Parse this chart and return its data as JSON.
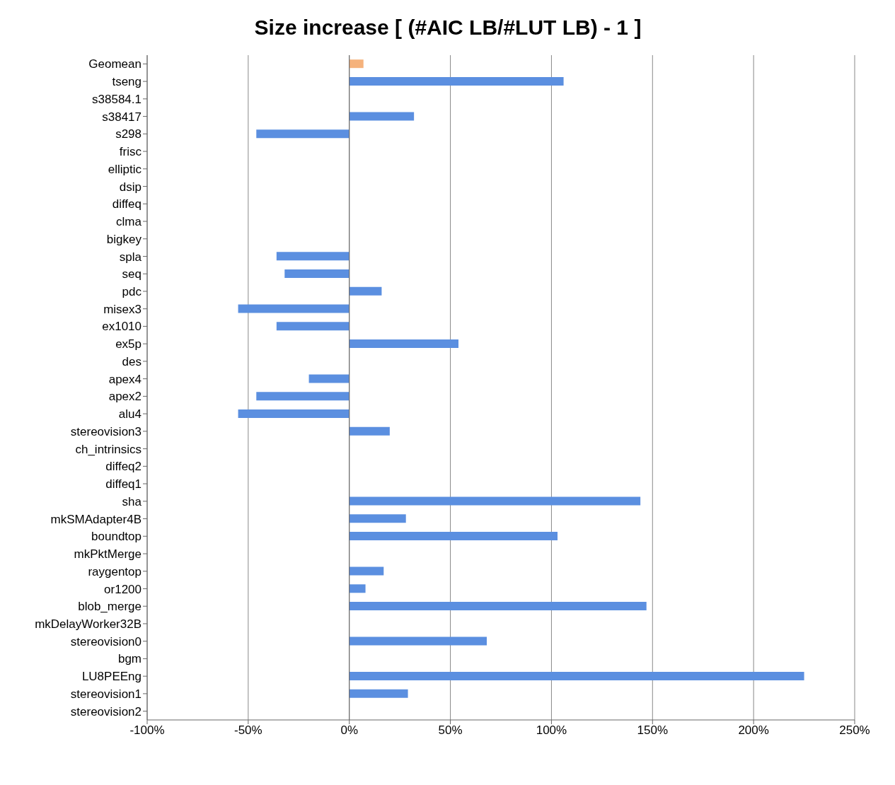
{
  "chart_data": {
    "type": "bar",
    "orientation": "horizontal",
    "title": "Size increase [ (#AIC LB/#LUT LB) - 1 ]",
    "categories": [
      "Geomean",
      "tseng",
      "s38584.1",
      "s38417",
      "s298",
      "frisc",
      "elliptic",
      "dsip",
      "diffeq",
      "clma",
      "bigkey",
      "spla",
      "seq",
      "pdc",
      "misex3",
      "ex1010",
      "ex5p",
      "des",
      "apex4",
      "apex2",
      "alu4",
      "stereovision3",
      "ch_intrinsics",
      "diffeq2",
      "diffeq1",
      "sha",
      "mkSMAdapter4B",
      "boundtop",
      "mkPktMerge",
      "raygentop",
      "or1200",
      "blob_merge",
      "mkDelayWorker32B",
      "stereovision0",
      "bgm",
      "LU8PEEng",
      "stereovision1",
      "stereovision2"
    ],
    "values": [
      7,
      106,
      0,
      32,
      -46,
      0,
      0,
      0,
      0,
      0,
      0,
      -36,
      -32,
      16,
      -55,
      -36,
      54,
      0,
      -20,
      -46,
      -55,
      20,
      0,
      0,
      0,
      144,
      28,
      103,
      0,
      17,
      8,
      147,
      0,
      68,
      0,
      225,
      29,
      0
    ],
    "colors": [
      "#f5b27c",
      "#5b8fe0",
      "#5b8fe0",
      "#5b8fe0",
      "#5b8fe0",
      "#5b8fe0",
      "#5b8fe0",
      "#5b8fe0",
      "#5b8fe0",
      "#5b8fe0",
      "#5b8fe0",
      "#5b8fe0",
      "#5b8fe0",
      "#5b8fe0",
      "#5b8fe0",
      "#5b8fe0",
      "#5b8fe0",
      "#5b8fe0",
      "#5b8fe0",
      "#5b8fe0",
      "#5b8fe0",
      "#5b8fe0",
      "#5b8fe0",
      "#5b8fe0",
      "#5b8fe0",
      "#5b8fe0",
      "#5b8fe0",
      "#5b8fe0",
      "#5b8fe0",
      "#5b8fe0",
      "#5b8fe0",
      "#5b8fe0",
      "#5b8fe0",
      "#5b8fe0",
      "#5b8fe0",
      "#5b8fe0",
      "#5b8fe0",
      "#5b8fe0"
    ],
    "xlim": [
      -100,
      250
    ],
    "xticks": [
      {
        "value": -100,
        "label": "-100%"
      },
      {
        "value": -50,
        "label": "-50%"
      },
      {
        "value": 0,
        "label": "0%"
      },
      {
        "value": 50,
        "label": "50%"
      },
      {
        "value": 100,
        "label": "100%"
      },
      {
        "value": 150,
        "label": "150%"
      },
      {
        "value": 200,
        "label": "200%"
      },
      {
        "value": 250,
        "label": "250%"
      }
    ],
    "grid": "x"
  }
}
